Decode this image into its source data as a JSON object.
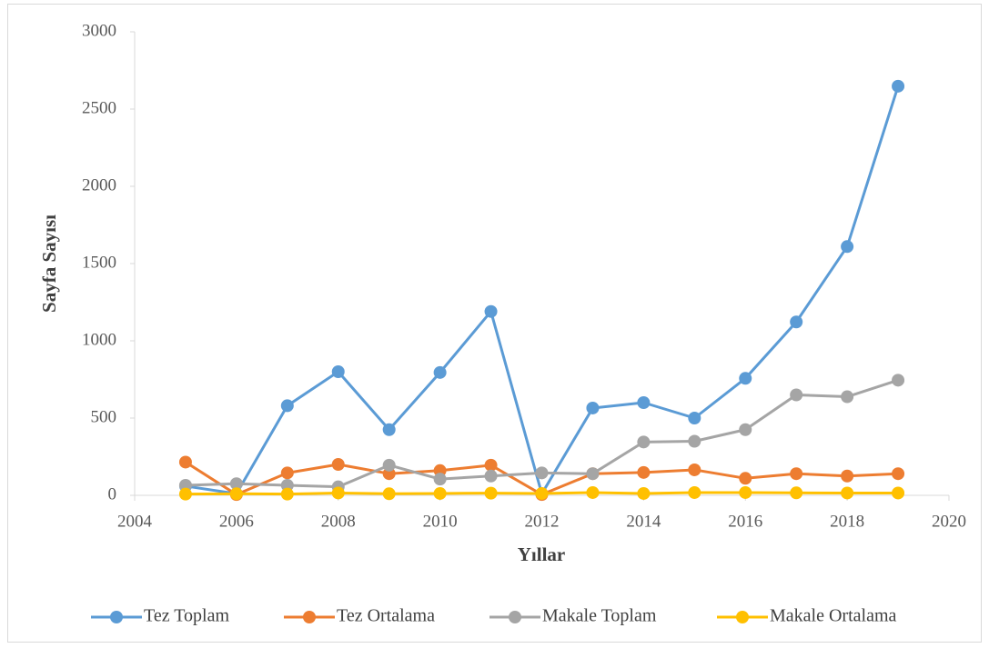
{
  "chart_data": {
    "type": "line",
    "xlabel": "Yıllar",
    "ylabel": "Sayfa Sayısı",
    "x": [
      2005,
      2006,
      2007,
      2008,
      2009,
      2010,
      2011,
      2012,
      2013,
      2014,
      2015,
      2016,
      2017,
      2018,
      2019
    ],
    "series": [
      {
        "name": "Tez Toplam",
        "color": "#5b9bd5",
        "values": [
          60,
          10,
          580,
          800,
          425,
          795,
          1190,
          10,
          565,
          600,
          500,
          757,
          1122,
          1610,
          2648
        ]
      },
      {
        "name": "Tez Ortalama",
        "color": "#ed7d31",
        "values": [
          215,
          5,
          145,
          200,
          140,
          160,
          195,
          5,
          140,
          148,
          165,
          110,
          140,
          125,
          140
        ]
      },
      {
        "name": "Makale Toplam",
        "color": "#a5a5a5",
        "values": [
          65,
          75,
          65,
          55,
          195,
          105,
          125,
          145,
          140,
          345,
          350,
          425,
          650,
          638,
          745
        ]
      },
      {
        "name": "Makale Ortalama",
        "color": "#ffc000",
        "values": [
          8,
          10,
          8,
          15,
          10,
          12,
          14,
          12,
          18,
          12,
          18,
          18,
          16,
          15,
          15
        ]
      }
    ],
    "xlim": [
      2004,
      2020
    ],
    "xticks": [
      2004,
      2006,
      2008,
      2010,
      2012,
      2014,
      2016,
      2018,
      2020
    ],
    "ylim": [
      0,
      3000
    ],
    "yticks": [
      0,
      500,
      1000,
      1500,
      2000,
      2500,
      3000
    ],
    "legend": "bottom"
  }
}
